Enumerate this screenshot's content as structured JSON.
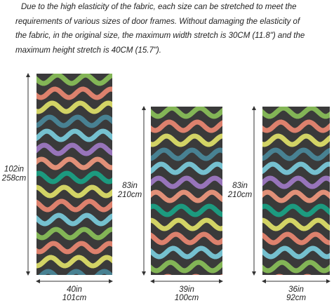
{
  "description": {
    "lines": [
      "Due to the high elasticity of the fabric, each size can be stretched to meet the",
      "requirements of various sizes of door frames. Without damaging the elasticity of",
      "the fabric, in the original size, the maximum width stretch is 30CM (11.8\") and the",
      "maximum height stretch is 40CM (15.7\")."
    ]
  },
  "doors": [
    {
      "height_in": "102in",
      "height_cm": "258cm",
      "width_in": "40in",
      "width_cm": "101cm"
    },
    {
      "height_in": "83in",
      "height_cm": "210cm",
      "width_in": "39in",
      "width_cm": "100cm"
    },
    {
      "height_in": "83in",
      "height_cm": "210cm",
      "width_in": "36in",
      "width_cm": "92cm"
    }
  ]
}
